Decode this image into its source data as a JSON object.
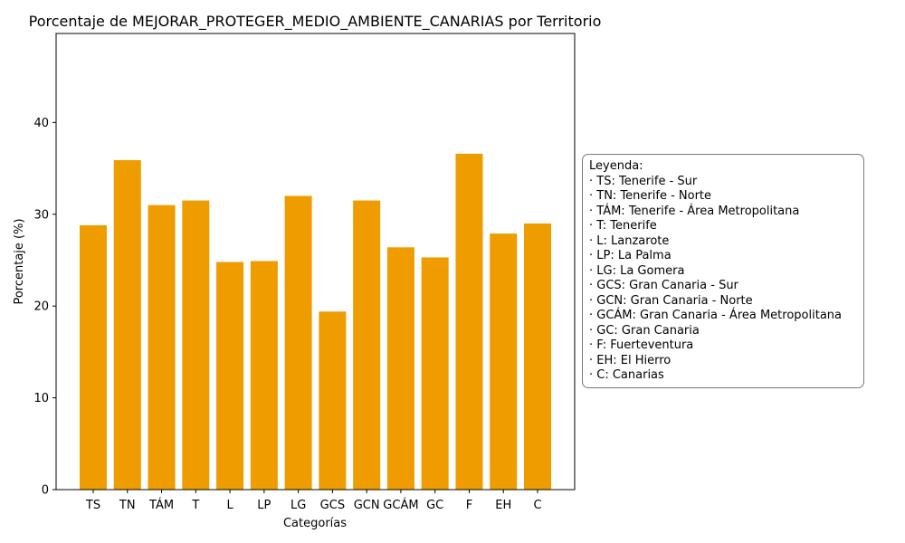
{
  "chart_data": {
    "type": "bar",
    "title": "Porcentaje de MEJORAR_PROTEGER_MEDIO_AMBIENTE_CANARIAS por Territorio",
    "xlabel": "Categorías",
    "ylabel": "Porcentaje (%)",
    "categories": [
      "TS",
      "TN",
      "TÁM",
      "T",
      "L",
      "LP",
      "LG",
      "GCS",
      "GCN",
      "GCÁM",
      "GC",
      "F",
      "EH",
      "C"
    ],
    "values": [
      28.8,
      35.9,
      31.0,
      31.5,
      24.8,
      24.9,
      32.0,
      19.4,
      31.5,
      26.4,
      25.3,
      36.6,
      27.9,
      29.0
    ],
    "ylim": [
      0,
      49.7
    ],
    "yticks": [
      0,
      10,
      20,
      30,
      40
    ],
    "bar_color": "#ee9c00",
    "grid": false,
    "legend": {
      "title": "Leyenda:",
      "placement": "right",
      "entries": [
        "· TS: Tenerife - Sur",
        "· TN: Tenerife - Norte",
        "· TÁM: Tenerife - Área Metropolitana",
        "· T: Tenerife",
        "· L: Lanzarote",
        "· LP: La Palma",
        "· LG: La Gomera",
        "· GCS: Gran Canaria - Sur",
        "· GCN: Gran Canaria - Norte",
        "· GCÁM: Gran Canaria - Área Metropolitana",
        "· GC: Gran Canaria",
        "· F: Fuerteventura",
        "· EH: El Hierro",
        "· C: Canarias"
      ]
    }
  }
}
